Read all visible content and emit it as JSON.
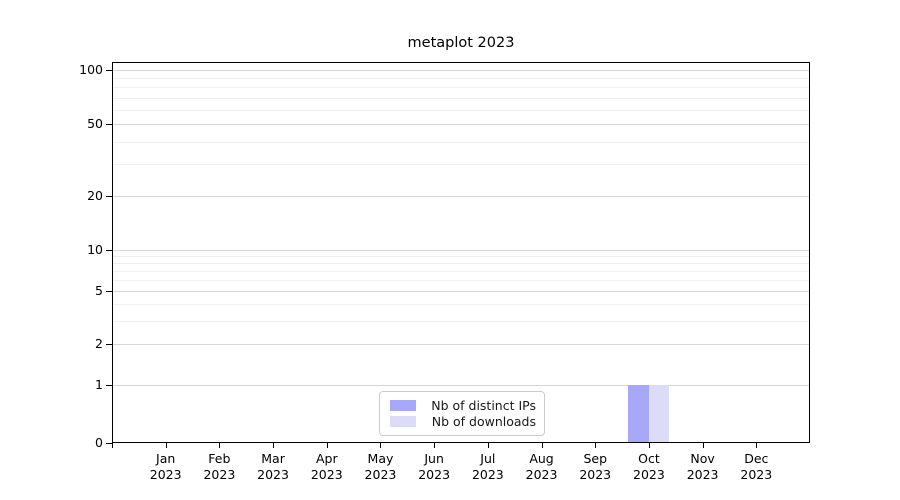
{
  "chart_data": {
    "type": "bar",
    "title": "metaplot 2023",
    "categories": [
      "Jan 2023",
      "Feb 2023",
      "Mar 2023",
      "Apr 2023",
      "May 2023",
      "Jun 2023",
      "Jul 2023",
      "Aug 2023",
      "Sep 2023",
      "Oct 2023",
      "Nov 2023",
      "Dec 2023"
    ],
    "series": [
      {
        "name": "Nb of distinct IPs",
        "color": "#a8a8f8",
        "values": [
          0,
          0,
          0,
          0,
          0,
          0,
          0,
          0,
          0,
          1,
          0,
          0
        ]
      },
      {
        "name": "Nb of downloads",
        "color": "#dcdcf8",
        "values": [
          0,
          0,
          0,
          0,
          0,
          0,
          0,
          0,
          0,
          1,
          0,
          0
        ]
      }
    ],
    "xlabel": "",
    "ylabel": "",
    "yscale": "symlog",
    "ylim": [
      0,
      110
    ],
    "y_ticks": [
      0,
      1,
      2,
      5,
      10,
      20,
      50,
      100
    ],
    "y_minor_ticks": [
      3,
      4,
      6,
      7,
      8,
      9,
      30,
      40,
      60,
      70,
      80,
      90
    ],
    "grid": "horizontal",
    "legend_position": "lower-center-inside"
  },
  "colors": {
    "background": "#ffffff",
    "axis": "#000000",
    "grid_major": "#d6d6d6",
    "grid_minor": "#efefef",
    "legend_border": "#cccccc",
    "tick_text": "#000000"
  }
}
